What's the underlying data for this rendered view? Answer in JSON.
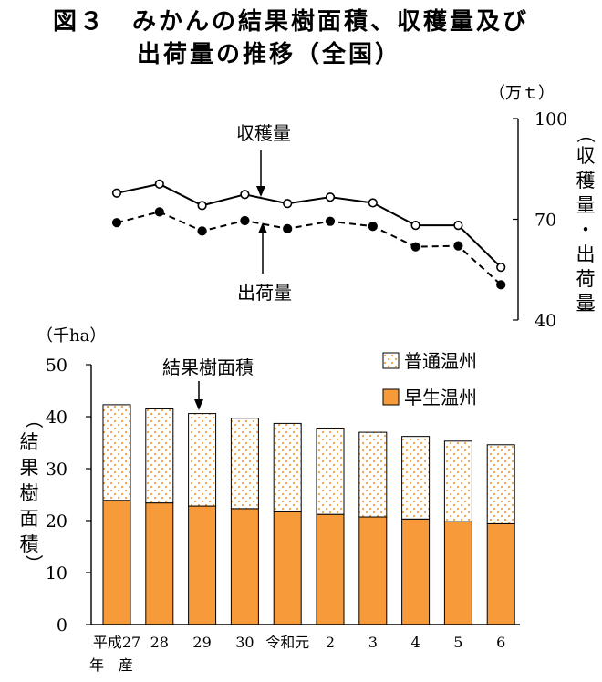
{
  "title": {
    "line1": "図３　みかんの結果樹面積、収穫量及び",
    "line2": "出荷量の推移（全国）"
  },
  "chart_data": [
    {
      "type": "line",
      "unit": "（万ｔ）",
      "ylabel": "収穫量・出荷量",
      "ylim": [
        40,
        100
      ],
      "yticks": [
        40,
        70,
        100
      ],
      "grid": false,
      "categories": [
        "平成27",
        "28",
        "29",
        "30",
        "令和元",
        "2",
        "3",
        "4",
        "5",
        "6"
      ],
      "series": [
        {
          "name": "収穫量",
          "values": [
            77.8,
            80.5,
            74.1,
            77.4,
            74.7,
            76.6,
            74.9,
            68.2,
            68.2,
            55.7
          ],
          "marker": "open-circle",
          "line": "solid"
        },
        {
          "name": "出荷量",
          "values": [
            69.0,
            72.2,
            66.5,
            69.6,
            67.2,
            69.4,
            67.9,
            61.8,
            62.1,
            50.5
          ],
          "marker": "filled-circle",
          "line": "dashed"
        }
      ]
    },
    {
      "type": "bar",
      "stacked": true,
      "unit": "（千ha）",
      "ylabel": "結果樹面積",
      "ylim": [
        0,
        50
      ],
      "yticks": [
        0,
        10,
        20,
        30,
        40,
        50
      ],
      "grid": false,
      "annotation": "結果樹面積",
      "categories": [
        "平成27",
        "28",
        "29",
        "30",
        "令和元",
        "2",
        "3",
        "4",
        "5",
        "6"
      ],
      "x_suffix": "年　産",
      "legend_position": "top-right",
      "series": [
        {
          "name": "早生温州",
          "color": "#f79a3a",
          "values": [
            23.9,
            23.4,
            22.8,
            22.3,
            21.7,
            21.2,
            20.7,
            20.3,
            19.8,
            19.4
          ]
        },
        {
          "name": "普通温州",
          "color": "#f79a3a",
          "pattern": "dotted",
          "values": [
            18.4,
            18.1,
            17.8,
            17.4,
            17.0,
            16.6,
            16.3,
            15.9,
            15.5,
            15.2
          ]
        }
      ]
    }
  ]
}
